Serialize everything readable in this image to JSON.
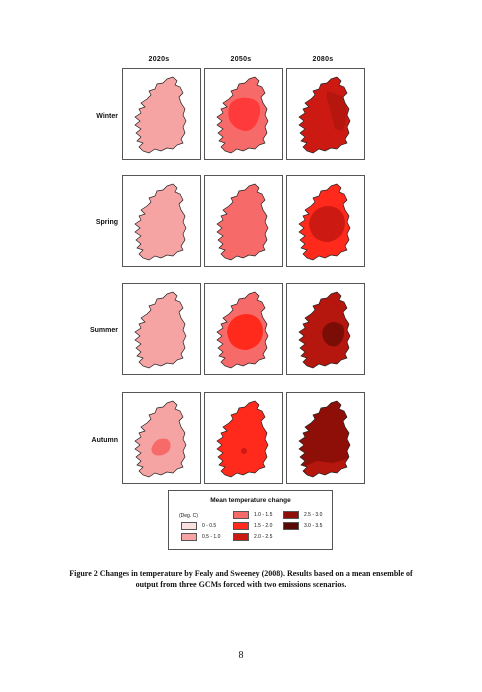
{
  "figure": {
    "columns": [
      "2020s",
      "2050s",
      "2080s"
    ],
    "rows": [
      {
        "label": "Winter",
        "maps": [
          {
            "base": "#f5a3a3",
            "zones": []
          },
          {
            "base": "#f76a6a",
            "zones": [
              {
                "color": "#ff3a3a",
                "shape": "north-blob"
              }
            ]
          },
          {
            "base": "#cc1a12",
            "zones": [
              {
                "color": "#b5160e",
                "shape": "east-band"
              }
            ]
          }
        ]
      },
      {
        "label": "Spring",
        "maps": [
          {
            "base": "#f5a3a3",
            "zones": []
          },
          {
            "base": "#f76a6a",
            "zones": []
          },
          {
            "base": "#ff2a1c",
            "zones": [
              {
                "color": "#cc1a12",
                "shape": "center-large"
              }
            ]
          }
        ]
      },
      {
        "label": "Summer",
        "maps": [
          {
            "base": "#f5a3a3",
            "zones": []
          },
          {
            "base": "#f76a6a",
            "zones": [
              {
                "color": "#ff2a1c",
                "shape": "center-large"
              }
            ]
          },
          {
            "base": "#b5160e",
            "zones": [
              {
                "color": "#7a0d06",
                "shape": "east-small"
              }
            ]
          }
        ]
      },
      {
        "label": "Autumn",
        "maps": [
          {
            "base": "#f5a3a3",
            "zones": [
              {
                "color": "#f76a6a",
                "shape": "center-small"
              }
            ]
          },
          {
            "base": "#ff2a1c",
            "zones": [
              {
                "color": "#cc1a12",
                "shape": "dot"
              }
            ]
          },
          {
            "base": "#8e0f08",
            "zones": [
              {
                "color": "#b5160e",
                "shape": "south-band"
              }
            ]
          }
        ]
      }
    ]
  },
  "legend": {
    "title": "Mean temperature change",
    "unit": "(Deg. C)",
    "items": [
      {
        "label": "0 - 0.5",
        "color": "#fbe0e0"
      },
      {
        "label": "0.5 - 1.0",
        "color": "#f5a3a3"
      },
      {
        "label": "1.0 - 1.5",
        "color": "#f76a6a"
      },
      {
        "label": "1.5 - 2.0",
        "color": "#ff2a1c"
      },
      {
        "label": "2.0 - 2.5",
        "color": "#cc1a12"
      },
      {
        "label": "2.5 - 3.0",
        "color": "#8e0f08"
      },
      {
        "label": "3.0 - 3.5",
        "color": "#5a0804"
      }
    ]
  },
  "caption": {
    "line1": "Figure 2 Changes in temperature by Fealy and Sweeney (2008). Results based on a mean ensemble of",
    "line2": "output from three GCMs forced with two emissions scenarios."
  },
  "page_number": "8"
}
